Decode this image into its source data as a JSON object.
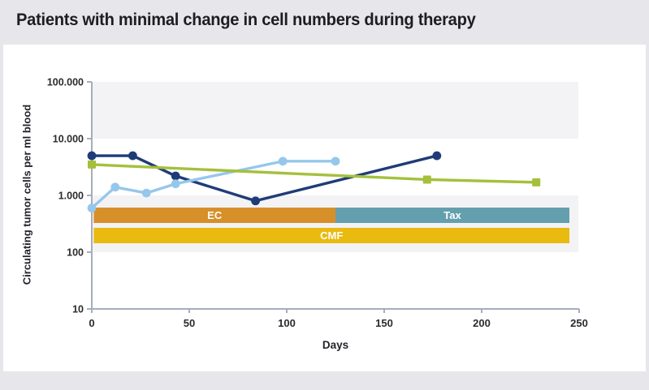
{
  "page": {
    "title": "Patients with minimal change in cell numbers during therapy",
    "background_color": "#e7e6ea",
    "card_color": "#ffffff"
  },
  "chart_data": {
    "type": "line",
    "title": "Patients with minimal change in cell numbers during therapy",
    "xlabel": "Days",
    "ylabel": "Circulating tumor cells per ml blood",
    "x_scale": "linear",
    "y_scale": "log",
    "xlim": [
      0,
      250
    ],
    "ylim": [
      10,
      100000
    ],
    "grid": "off",
    "legend": "none",
    "background_bands": {
      "color": "#f3f3f6",
      "decades": [
        [
          10000,
          100000
        ],
        [
          100,
          1000
        ]
      ]
    },
    "axis_color": "#a6adbd",
    "tick_text_color": "#2b2b2e",
    "x_ticks": [
      {
        "v": 0,
        "label": "0"
      },
      {
        "v": 50,
        "label": "50"
      },
      {
        "v": 100,
        "label": "100"
      },
      {
        "v": 150,
        "label": "150"
      },
      {
        "v": 200,
        "label": "200"
      },
      {
        "v": 250,
        "label": "250"
      }
    ],
    "y_ticks": [
      {
        "v": 100000,
        "label": "100.000"
      },
      {
        "v": 10000,
        "label": "10.000"
      },
      {
        "v": 1000,
        "label": "1.000"
      },
      {
        "v": 100,
        "label": "100"
      },
      {
        "v": 10,
        "label": "10"
      }
    ],
    "series": [
      {
        "id": "series-dark-blue",
        "color": "#1f3c78",
        "marker": "circle",
        "points": [
          [
            0,
            5000
          ],
          [
            21,
            5000
          ],
          [
            43,
            2200
          ],
          [
            84,
            800
          ],
          [
            177,
            5000
          ]
        ]
      },
      {
        "id": "series-light-blue",
        "color": "#96c7eb",
        "marker": "circle",
        "points": [
          [
            0,
            600
          ],
          [
            12,
            1400
          ],
          [
            28,
            1100
          ],
          [
            43,
            1600
          ],
          [
            98,
            4000
          ],
          [
            125,
            4000
          ]
        ]
      },
      {
        "id": "series-green",
        "color": "#a4c03c",
        "marker": "square",
        "points": [
          [
            0,
            3500
          ],
          [
            172,
            1900
          ],
          [
            228,
            1700
          ]
        ]
      }
    ],
    "therapy_bars": [
      {
        "label": "EC",
        "color": "#d78f2a",
        "text_color": "#ffffff",
        "start": 1,
        "end": 125,
        "row": 0
      },
      {
        "label": "Tax",
        "color": "#649fae",
        "text_color": "#ffffff",
        "start": 125,
        "end": 245,
        "row": 0
      },
      {
        "label": "CMF",
        "color": "#e9ba10",
        "text_color": "#ffffff",
        "start": 1,
        "end": 245,
        "row": 1
      }
    ]
  }
}
